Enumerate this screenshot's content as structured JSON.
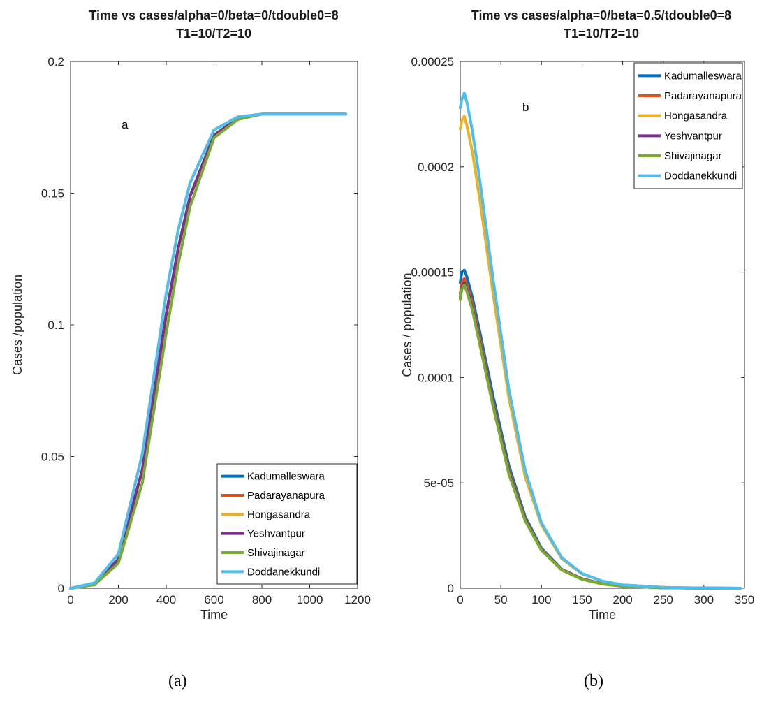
{
  "figure": {
    "caption_a": "(a)",
    "caption_b": "(b)"
  },
  "chart_data": [
    {
      "type": "line",
      "title": "Time vs cases/alpha=0/beta=0/tdouble0=8",
      "subtitle": "T1=10/T2=10",
      "xlabel": "Time",
      "ylabel": "Cases /population",
      "xlim": [
        0,
        1200
      ],
      "ylim": [
        0,
        0.2
      ],
      "xticks": [
        0,
        200,
        400,
        600,
        800,
        1000,
        1200
      ],
      "yticks": [
        0,
        0.05,
        0.1,
        0.15,
        0.2
      ],
      "xtick_labels": [
        "0",
        "200",
        "400",
        "600",
        "800",
        "1000",
        "1200"
      ],
      "ytick_labels": [
        "0",
        "0.05",
        "0.1",
        "0.15",
        "0.2"
      ],
      "annotation": "a",
      "grid": false,
      "legend_position": "bottom-right",
      "series": [
        {
          "name": "Kadumalleswara",
          "color": "#0072BD",
          "x": [
            0,
            100,
            200,
            300,
            400,
            450,
            500,
            600,
            700,
            800,
            900,
            1000,
            1150
          ],
          "y": [
            0.0,
            0.0015,
            0.011,
            0.045,
            0.104,
            0.129,
            0.149,
            0.172,
            0.1785,
            0.18,
            0.18,
            0.18,
            0.18
          ]
        },
        {
          "name": "Padarayanapura",
          "color": "#D95319",
          "x": [
            0,
            100,
            200,
            300,
            400,
            450,
            500,
            600,
            700,
            800,
            900,
            1000,
            1150
          ],
          "y": [
            0.0,
            0.0015,
            0.011,
            0.045,
            0.104,
            0.129,
            0.149,
            0.172,
            0.1785,
            0.18,
            0.18,
            0.18,
            0.18
          ]
        },
        {
          "name": "Hongasandra",
          "color": "#EDB120",
          "x": [
            0,
            100,
            200,
            300,
            400,
            450,
            500,
            600,
            700,
            800,
            900,
            1000,
            1150
          ],
          "y": [
            0.0,
            0.002,
            0.013,
            0.051,
            0.112,
            0.136,
            0.154,
            0.174,
            0.179,
            0.18,
            0.18,
            0.18,
            0.18
          ]
        },
        {
          "name": "Yeshvantpur",
          "color": "#7E2F8E",
          "x": [
            0,
            100,
            200,
            300,
            400,
            450,
            500,
            600,
            700,
            800,
            900,
            1000,
            1150
          ],
          "y": [
            0.0,
            0.0015,
            0.011,
            0.045,
            0.104,
            0.129,
            0.149,
            0.172,
            0.1785,
            0.18,
            0.18,
            0.18,
            0.18
          ]
        },
        {
          "name": "Shivajinagar",
          "color": "#77AC30",
          "x": [
            0,
            100,
            200,
            300,
            400,
            450,
            500,
            600,
            700,
            800,
            900,
            1000,
            1150
          ],
          "y": [
            0.0,
            0.0013,
            0.0095,
            0.04,
            0.097,
            0.123,
            0.145,
            0.171,
            0.178,
            0.18,
            0.18,
            0.18,
            0.18
          ]
        },
        {
          "name": "Doddanekkundi",
          "color": "#4DBEEE",
          "x": [
            0,
            100,
            200,
            300,
            400,
            450,
            500,
            600,
            700,
            800,
            900,
            1000,
            1150
          ],
          "y": [
            0.0,
            0.002,
            0.013,
            0.051,
            0.112,
            0.136,
            0.154,
            0.174,
            0.179,
            0.18,
            0.18,
            0.18,
            0.18
          ]
        }
      ]
    },
    {
      "type": "line",
      "title": "Time vs cases/alpha=0/beta=0.5/tdouble0=8",
      "subtitle": "T1=10/T2=10",
      "xlabel": "Time",
      "ylabel": "Cases / population",
      "xlim": [
        0,
        350
      ],
      "ylim": [
        0,
        0.00025
      ],
      "xticks": [
        0,
        50,
        100,
        150,
        200,
        250,
        300,
        350
      ],
      "yticks": [
        0,
        5e-05,
        0.0001,
        0.00015,
        0.0002,
        0.00025
      ],
      "xtick_labels": [
        "0",
        "50",
        "100",
        "150",
        "200",
        "250",
        "300",
        "350"
      ],
      "ytick_labels": [
        "0",
        "5e-05",
        "0.0001",
        "0.00015",
        "0.0002",
        "0.00025"
      ],
      "annotation": "b",
      "grid": false,
      "legend_position": "top-right",
      "series": [
        {
          "name": "Kadumalleswara",
          "color": "#0072BD",
          "x": [
            0,
            2,
            5,
            8,
            15,
            25,
            40,
            60,
            80,
            100,
            125,
            150,
            175,
            200,
            250,
            300,
            345
          ],
          "y": [
            0.000145,
            0.00015,
            0.000151,
            0.000148,
            0.000138,
            0.00012,
            9.2e-05,
            5.8e-05,
            3.4e-05,
            1.9e-05,
            9e-06,
            4.5e-06,
            2.2e-06,
            1e-06,
            2e-07,
            5e-08,
            0.0
          ]
        },
        {
          "name": "Padarayanapura",
          "color": "#D95319",
          "x": [
            0,
            2,
            5,
            8,
            15,
            25,
            40,
            60,
            80,
            100,
            125,
            150,
            175,
            200,
            250,
            300,
            345
          ],
          "y": [
            0.00014,
            0.000145,
            0.000147,
            0.000144,
            0.000135,
            0.000117,
            8.9e-05,
            5.6e-05,
            3.3e-05,
            1.85e-05,
            8.8e-06,
            4.4e-06,
            2.1e-06,
            1e-06,
            2e-07,
            5e-08,
            0.0
          ]
        },
        {
          "name": "Hongasandra",
          "color": "#EDB120",
          "x": [
            0,
            2,
            5,
            8,
            15,
            25,
            40,
            60,
            80,
            100,
            125,
            150,
            175,
            200,
            250,
            300,
            345
          ],
          "y": [
            0.000218,
            0.000222,
            0.000224,
            0.00022,
            0.000207,
            0.000182,
            0.000141,
            9e-05,
            5.3e-05,
            3e-05,
            1.4e-05,
            6.8e-06,
            3.3e-06,
            1.6e-06,
            4e-07,
            1e-07,
            0.0
          ]
        },
        {
          "name": "Yeshvantpur",
          "color": "#7E2F8E",
          "x": [
            0,
            2,
            5,
            8,
            15,
            25,
            40,
            60,
            80,
            100,
            125,
            150,
            175,
            200,
            250,
            300,
            345
          ],
          "y": [
            0.000138,
            0.000143,
            0.000145,
            0.000142,
            0.000133,
            0.000115,
            8.8e-05,
            5.5e-05,
            3.25e-05,
            1.82e-05,
            8.7e-06,
            4.3e-06,
            2.1e-06,
            1e-06,
            2e-07,
            5e-08,
            0.0
          ]
        },
        {
          "name": "Shivajinagar",
          "color": "#77AC30",
          "x": [
            0,
            2,
            5,
            8,
            15,
            25,
            40,
            60,
            80,
            100,
            125,
            150,
            175,
            200,
            250,
            300,
            345
          ],
          "y": [
            0.000137,
            0.000142,
            0.000144,
            0.000141,
            0.000132,
            0.000114,
            8.7e-05,
            5.4e-05,
            3.2e-05,
            1.8e-05,
            8.6e-06,
            4.2e-06,
            2e-06,
            1e-06,
            2e-07,
            5e-08,
            0.0
          ]
        },
        {
          "name": "Doddanekkundi",
          "color": "#4DBEEE",
          "x": [
            0,
            2,
            5,
            8,
            15,
            25,
            40,
            60,
            80,
            100,
            125,
            150,
            175,
            200,
            250,
            300,
            345
          ],
          "y": [
            0.000228,
            0.000232,
            0.000235,
            0.000231,
            0.000217,
            0.000191,
            0.000148,
            9.4e-05,
            5.6e-05,
            3.1e-05,
            1.45e-05,
            7e-06,
            3.4e-06,
            1.6e-06,
            4e-07,
            1e-07,
            0.0
          ]
        }
      ]
    }
  ]
}
